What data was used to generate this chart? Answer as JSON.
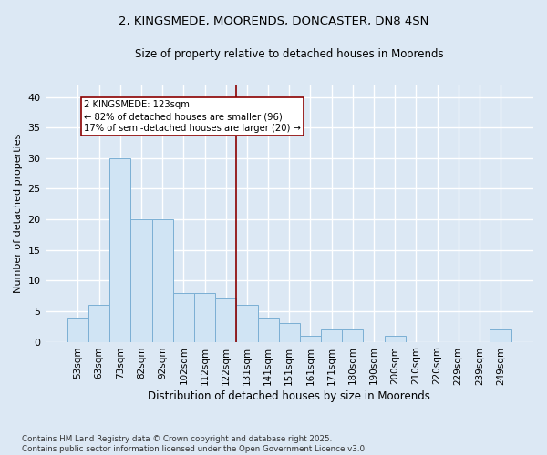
{
  "title": "2, KINGSMEDE, MOORENDS, DONCASTER, DN8 4SN",
  "subtitle": "Size of property relative to detached houses in Moorends",
  "xlabel": "Distribution of detached houses by size in Moorends",
  "ylabel": "Number of detached properties",
  "bar_color": "#d0e4f4",
  "bar_edge_color": "#7bafd4",
  "background_color": "#dce8f4",
  "grid_color": "#ffffff",
  "categories": [
    "53sqm",
    "63sqm",
    "73sqm",
    "82sqm",
    "92sqm",
    "102sqm",
    "112sqm",
    "122sqm",
    "131sqm",
    "141sqm",
    "151sqm",
    "161sqm",
    "171sqm",
    "180sqm",
    "190sqm",
    "200sqm",
    "210sqm",
    "220sqm",
    "229sqm",
    "239sqm",
    "249sqm"
  ],
  "values": [
    4,
    6,
    30,
    20,
    20,
    8,
    8,
    7,
    6,
    4,
    3,
    1,
    2,
    2,
    0,
    1,
    0,
    0,
    0,
    0,
    2
  ],
  "property_line_x": 7.5,
  "property_label": "2 KINGSMEDE: 123sqm",
  "annotation_line1": "← 82% of detached houses are smaller (96)",
  "annotation_line2": "17% of semi-detached houses are larger (20) →",
  "ylim": [
    0,
    42
  ],
  "yticks": [
    0,
    5,
    10,
    15,
    20,
    25,
    30,
    35,
    40
  ],
  "footer": "Contains HM Land Registry data © Crown copyright and database right 2025.\nContains public sector information licensed under the Open Government Licence v3.0.",
  "figsize": [
    6.0,
    5.0
  ],
  "dpi": 100,
  "title_fontsize": 9.5,
  "subtitle_fontsize": 8.5
}
